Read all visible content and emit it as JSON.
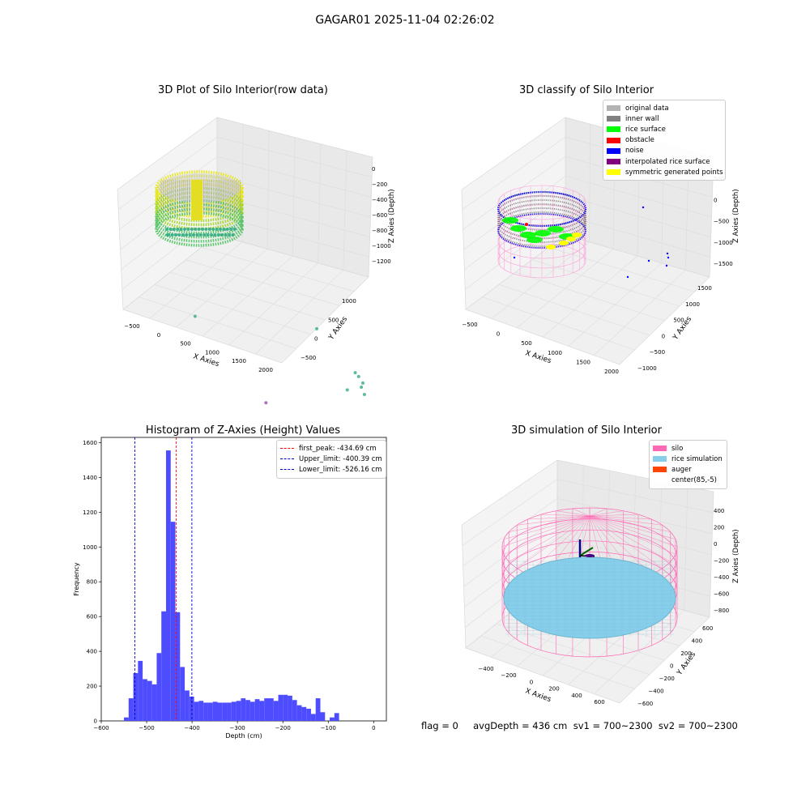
{
  "suptitle": "GAGAR01 2025-11-04 02:26:02",
  "footer": "flag = 0     avgDepth = 436 cm  sv1 = 700~2300  sv2 = 700~2300",
  "colors": {
    "raw_low": "#3fb18a",
    "raw_high": "#f5e91e",
    "inner_wall": "#808080",
    "rice_surface": "#00ff00",
    "obstacle": "#ff0000",
    "noise": "#0000ff",
    "interpolated": "#800080",
    "symmetric": "#ffff00",
    "silo": "#ff69b4",
    "rice_sim": "#87ceeb",
    "auger": "#ff4500",
    "hist_bar": "#4d4dff"
  },
  "chart_data": [
    {
      "type": "scatter",
      "subtype": "3d",
      "title": "3D Plot of Silo Interior(row data)",
      "xlabel": "X Axies",
      "ylabel": "Y Axies",
      "zlabel": "Z Axies (Depth)",
      "x_ticks": [
        "−500",
        "0",
        "500",
        "1000",
        "1500",
        "2000"
      ],
      "y_ticks": [
        "−500",
        "0",
        "500",
        "1000"
      ],
      "z_ticks": [
        "0",
        "−200",
        "−400",
        "−600",
        "−800",
        "−1000",
        "−1200"
      ],
      "silo": {
        "center_x": 0,
        "center_y": 0,
        "radius": 550,
        "depth_top": -250,
        "depth_bottom": -650
      },
      "outliers": [
        {
          "x": 1400,
          "y": -300,
          "z": -300
        },
        {
          "x": 1700,
          "y": 100,
          "z": -900
        },
        {
          "x": 1720,
          "y": 150,
          "z": -960
        },
        {
          "x": 1750,
          "y": 200,
          "z": -1050
        },
        {
          "x": 1740,
          "y": 180,
          "z": -1100
        },
        {
          "x": 1760,
          "y": 220,
          "z": -1200
        },
        {
          "x": 1600,
          "y": 100,
          "z": -1150
        },
        {
          "x": 900,
          "y": -600,
          "z": -1300
        },
        {
          "x": -400,
          "y": 300,
          "z": -850
        }
      ]
    },
    {
      "type": "scatter",
      "subtype": "3d",
      "title": "3D classify of Silo Interior",
      "xlabel": "X Axies",
      "ylabel": "Y Axies",
      "zlabel": "Z Axies (Depth)",
      "x_ticks": [
        "−500",
        "0",
        "500",
        "1000",
        "1500",
        "2000"
      ],
      "y_ticks": [
        "−1000",
        "−500",
        "0",
        "500",
        "1000",
        "1500"
      ],
      "z_ticks": [
        "500",
        "0",
        "−500",
        "−1000",
        "−1500"
      ],
      "legend": [
        "original data",
        "inner wall",
        "rice surface",
        "obstacle",
        "noise",
        "interpolated rice surface",
        "symmetric generated points"
      ],
      "legend_placement": "top-right"
    },
    {
      "type": "bar",
      "subtype": "histogram",
      "title": "Histogram of Z-Axies (Height) Values",
      "xlabel": "Depth (cm)",
      "ylabel": "Frequency",
      "xlim": [
        -600,
        28
      ],
      "ylim": [
        0,
        1630
      ],
      "x_ticks": [
        -600,
        -500,
        -400,
        -300,
        -200,
        -100,
        0
      ],
      "x_tick_labels": [
        "−600",
        "−500",
        "−400",
        "−300",
        "−200",
        "−100",
        "0"
      ],
      "y_ticks": [
        0,
        200,
        400,
        600,
        800,
        1000,
        1200,
        1400,
        1600
      ],
      "y_tick_labels": [
        "0",
        "200",
        "400",
        "600",
        "800",
        "1000",
        "1200",
        "1400",
        "1600"
      ],
      "bin_start": -550,
      "bin_width": 10.3,
      "values": [
        20,
        130,
        275,
        345,
        240,
        230,
        210,
        390,
        630,
        1555,
        1145,
        625,
        310,
        175,
        140,
        110,
        115,
        105,
        105,
        110,
        105,
        105,
        105,
        110,
        115,
        130,
        120,
        110,
        125,
        115,
        130,
        130,
        115,
        150,
        150,
        145,
        120,
        90,
        80,
        70,
        40,
        130,
        50,
        0,
        20,
        45
      ],
      "vlines": [
        {
          "x": -434.69,
          "label": "first_peak: -434.69 cm",
          "color": "#ff0000"
        },
        {
          "x": -400.39,
          "label": "Upper_limit: -400.39 cm",
          "color": "#0000cc"
        },
        {
          "x": -526.16,
          "label": "Lower_limit: -526.16 cm",
          "color": "#0000cc"
        }
      ],
      "legend_placement": "top-right"
    },
    {
      "type": "scatter",
      "subtype": "3d",
      "title": "3D simulation of Silo Interior",
      "xlabel": "X Axies",
      "ylabel": "Y Axies",
      "zlabel": "Z Axies (Depth)",
      "x_ticks": [
        "−400",
        "−200",
        "0",
        "200",
        "400",
        "600"
      ],
      "y_ticks": [
        "−600",
        "−400",
        "−200",
        "0",
        "200",
        "400",
        "600"
      ],
      "z_ticks": [
        "400",
        "200",
        "0",
        "−200",
        "−400",
        "−600",
        "−800"
      ],
      "legend": [
        "silo",
        "rice simulation",
        "auger",
        "center(85,-5)"
      ],
      "legend_placement": "top-right",
      "avg_depth_cm": 436
    }
  ]
}
